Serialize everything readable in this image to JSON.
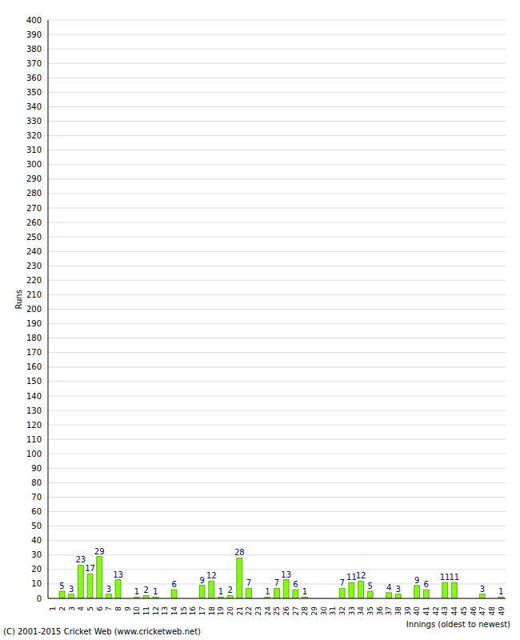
{
  "chart_data": {
    "type": "bar",
    "x_label": "Innings (oldest to newest)",
    "y_label": "Runs",
    "annotations": [
      "(C) 2001-2015 Cricket Web (www.cricketweb.net)"
    ],
    "categories": [
      "1",
      "2",
      "3",
      "4",
      "5",
      "6",
      "7",
      "8",
      "9",
      "10",
      "11",
      "12",
      "13",
      "14",
      "15",
      "16",
      "17",
      "18",
      "19",
      "20",
      "21",
      "22",
      "23",
      "24",
      "25",
      "26",
      "27",
      "28",
      "29",
      "30",
      "31",
      "32",
      "33",
      "34",
      "35",
      "36",
      "37",
      "38",
      "39",
      "40",
      "41",
      "42",
      "43",
      "44",
      "45",
      "46",
      "47",
      "48",
      "49"
    ],
    "values": [
      0,
      5,
      3,
      23,
      17,
      29,
      3,
      13,
      0,
      1,
      2,
      1,
      0,
      6,
      0,
      0,
      9,
      12,
      1,
      2,
      28,
      7,
      0,
      1,
      7,
      13,
      6,
      1,
      0,
      0,
      0,
      7,
      11,
      12,
      5,
      0,
      4,
      3,
      0,
      9,
      6,
      0,
      11,
      11,
      0,
      0,
      3,
      0,
      1
    ],
    "color": "#80ff00",
    "ylim": [
      0,
      400
    ],
    "yticks": [
      0,
      10,
      20,
      30,
      40,
      50,
      60,
      70,
      80,
      90,
      100,
      110,
      120,
      130,
      140,
      150,
      160,
      170,
      180,
      190,
      200,
      210,
      220,
      230,
      240,
      250,
      260,
      270,
      280,
      290,
      300,
      310,
      320,
      330,
      340,
      350,
      360,
      370,
      380,
      390,
      400
    ],
    "grid": true,
    "data_labels": true
  }
}
